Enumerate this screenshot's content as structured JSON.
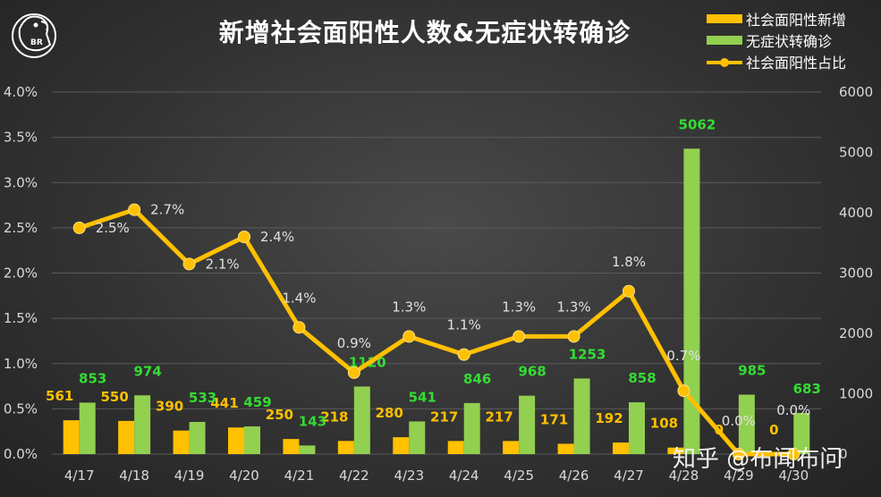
{
  "watermark": "知乎 @布闻布问",
  "logo_text": "BR",
  "colors": {
    "positive": "#ffc000",
    "asymptomatic": "#92d050",
    "ratio": "#ffc000",
    "asym_label": "#33dd33"
  },
  "chart_data": {
    "type": "bar+line",
    "title": "新增社会面阳性人数&无症状转确诊",
    "categories": [
      "4/17",
      "4/18",
      "4/19",
      "4/20",
      "4/21",
      "4/22",
      "4/23",
      "4/24",
      "4/25",
      "4/26",
      "4/27",
      "4/28",
      "4/29",
      "4/30"
    ],
    "series": [
      {
        "name": "社会面阳性新增",
        "type": "bar",
        "axis": "right",
        "values": [
          561,
          550,
          390,
          441,
          250,
          218,
          280,
          217,
          217,
          171,
          192,
          108,
          0,
          0
        ]
      },
      {
        "name": "无症状转确诊",
        "type": "bar",
        "axis": "right",
        "values": [
          853,
          974,
          533,
          459,
          143,
          1120,
          541,
          846,
          968,
          1253,
          858,
          5062,
          985,
          683
        ]
      },
      {
        "name": "社会面阳性占比",
        "type": "line",
        "axis": "left",
        "values": [
          2.5,
          2.7,
          2.1,
          2.4,
          1.4,
          0.9,
          1.3,
          1.1,
          1.3,
          1.3,
          1.8,
          0.7,
          0.0,
          0.0
        ],
        "labels": [
          "2.5%",
          "2.7%",
          "2.1%",
          "2.4%",
          "1.4%",
          "0.9%",
          "1.3%",
          "1.1%",
          "1.3%",
          "1.3%",
          "1.8%",
          "0.7%",
          "0.0%",
          "0.0%"
        ]
      }
    ],
    "y_left": {
      "ticks": [
        "0.0%",
        "0.5%",
        "1.0%",
        "1.5%",
        "2.0%",
        "2.5%",
        "3.0%",
        "3.5%",
        "4.0%"
      ],
      "range": [
        0,
        4.0
      ]
    },
    "y_right": {
      "ticks": [
        "0",
        "1000",
        "2000",
        "3000",
        "4000",
        "5000",
        "6000"
      ],
      "range": [
        0,
        6000
      ]
    },
    "legend_position": "top-right",
    "grid": true
  }
}
